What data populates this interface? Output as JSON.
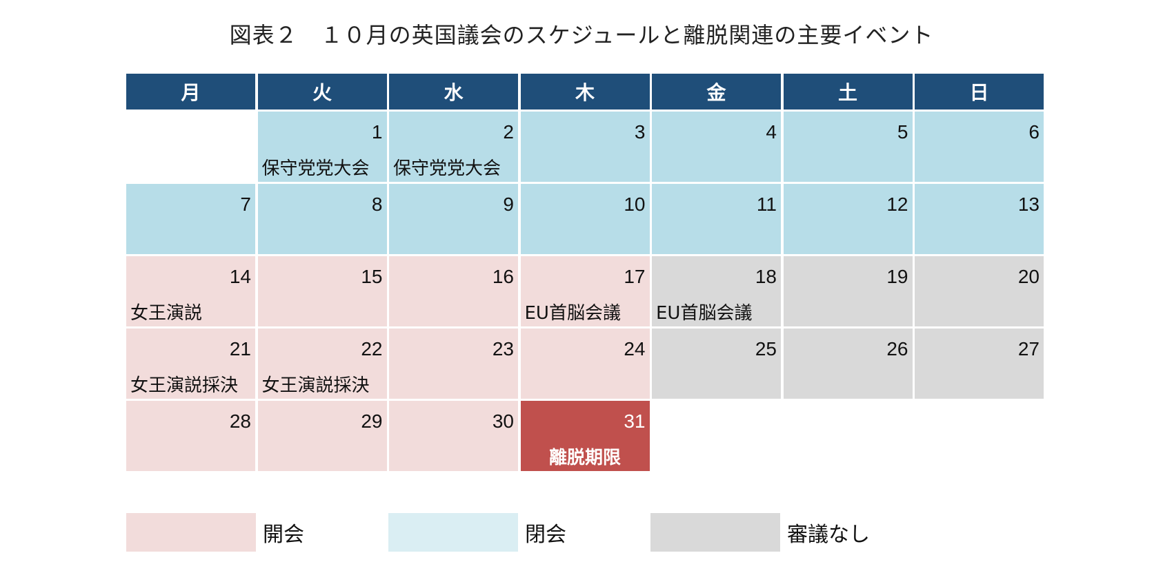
{
  "title": "図表２　１０月の英国議会のスケジュールと離脱関連の主要イベント",
  "weekdays": [
    "月",
    "火",
    "水",
    "木",
    "金",
    "土",
    "日"
  ],
  "colors": {
    "header": "#1f4e79",
    "sitting": "#f2dcdb",
    "closed": "#b7dde8",
    "closed_legend": "#daeef3",
    "no_debate": "#d9d9d9",
    "deadline": "#c0504d"
  },
  "days": [
    {
      "num": "",
      "status": "empty",
      "event": ""
    },
    {
      "num": "1",
      "status": "closed",
      "event": "保守党党大会"
    },
    {
      "num": "2",
      "status": "closed",
      "event": "保守党党大会"
    },
    {
      "num": "3",
      "status": "closed",
      "event": ""
    },
    {
      "num": "4",
      "status": "closed",
      "event": ""
    },
    {
      "num": "5",
      "status": "closed",
      "event": ""
    },
    {
      "num": "6",
      "status": "closed",
      "event": ""
    },
    {
      "num": "7",
      "status": "closed",
      "event": ""
    },
    {
      "num": "8",
      "status": "closed",
      "event": ""
    },
    {
      "num": "9",
      "status": "closed",
      "event": ""
    },
    {
      "num": "10",
      "status": "closed",
      "event": ""
    },
    {
      "num": "11",
      "status": "closed",
      "event": ""
    },
    {
      "num": "12",
      "status": "closed",
      "event": ""
    },
    {
      "num": "13",
      "status": "closed",
      "event": ""
    },
    {
      "num": "14",
      "status": "sitting",
      "event": "女王演説"
    },
    {
      "num": "15",
      "status": "sitting",
      "event": ""
    },
    {
      "num": "16",
      "status": "sitting",
      "event": ""
    },
    {
      "num": "17",
      "status": "sitting",
      "event": "EU首脳会議"
    },
    {
      "num": "18",
      "status": "none",
      "event": "EU首脳会議"
    },
    {
      "num": "19",
      "status": "none",
      "event": ""
    },
    {
      "num": "20",
      "status": "none",
      "event": ""
    },
    {
      "num": "21",
      "status": "sitting",
      "event": "女王演説採決"
    },
    {
      "num": "22",
      "status": "sitting",
      "event": "女王演説採決"
    },
    {
      "num": "23",
      "status": "sitting",
      "event": ""
    },
    {
      "num": "24",
      "status": "sitting",
      "event": ""
    },
    {
      "num": "25",
      "status": "none",
      "event": ""
    },
    {
      "num": "26",
      "status": "none",
      "event": ""
    },
    {
      "num": "27",
      "status": "none",
      "event": ""
    },
    {
      "num": "28",
      "status": "sitting",
      "event": ""
    },
    {
      "num": "29",
      "status": "sitting",
      "event": ""
    },
    {
      "num": "30",
      "status": "sitting",
      "event": ""
    },
    {
      "num": "31",
      "status": "deadline",
      "event": "離脱期限"
    },
    {
      "num": "",
      "status": "empty",
      "event": ""
    },
    {
      "num": "",
      "status": "empty",
      "event": ""
    },
    {
      "num": "",
      "status": "empty",
      "event": ""
    }
  ],
  "legend": [
    {
      "label": "開会",
      "color": "#f2dcdb"
    },
    {
      "label": "閉会",
      "color": "#daeef3"
    },
    {
      "label": "審議なし",
      "color": "#d9d9d9"
    }
  ]
}
